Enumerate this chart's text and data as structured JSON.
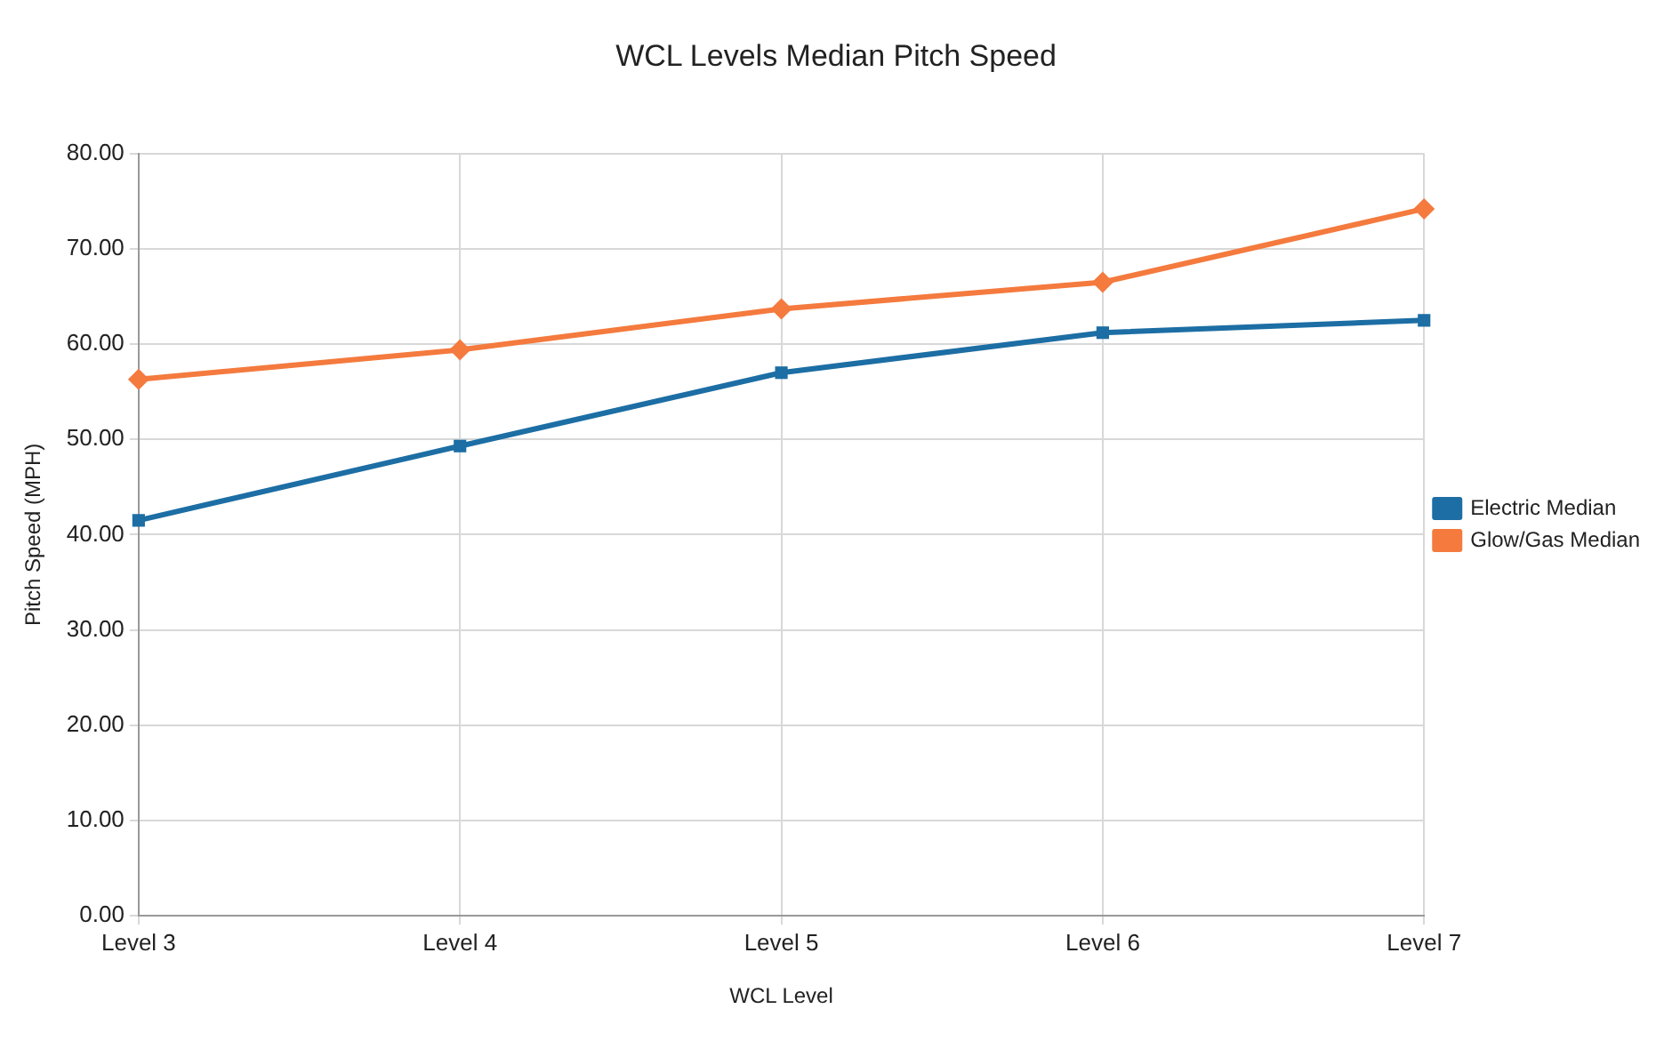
{
  "chart_data": {
    "type": "line",
    "title": "WCL Levels Median Pitch Speed",
    "xlabel": "WCL Level",
    "ylabel": "Pitch Speed (MPH)",
    "categories": [
      "Level 3",
      "Level 4",
      "Level 5",
      "Level 6",
      "Level 7"
    ],
    "series": [
      {
        "name": "Electric Median",
        "color": "#1c6ea4",
        "marker": "square",
        "values": [
          41.5,
          49.3,
          57.0,
          61.2,
          62.5
        ]
      },
      {
        "name": "Glow/Gas Median",
        "color": "#f47a3e",
        "marker": "diamond",
        "values": [
          56.3,
          59.4,
          63.7,
          66.5,
          74.2
        ]
      }
    ],
    "ylim": [
      0,
      80
    ],
    "yticks": [
      {
        "value": 0,
        "label": "0.00"
      },
      {
        "value": 10,
        "label": "10.00"
      },
      {
        "value": 20,
        "label": "20.00"
      },
      {
        "value": 30,
        "label": "30.00"
      },
      {
        "value": 40,
        "label": "40.00"
      },
      {
        "value": 50,
        "label": "50.00"
      },
      {
        "value": 60,
        "label": "60.00"
      },
      {
        "value": 70,
        "label": "70.00"
      },
      {
        "value": 80,
        "label": "80.00"
      }
    ],
    "grid": true,
    "legend": "right",
    "line_style": "solid"
  }
}
